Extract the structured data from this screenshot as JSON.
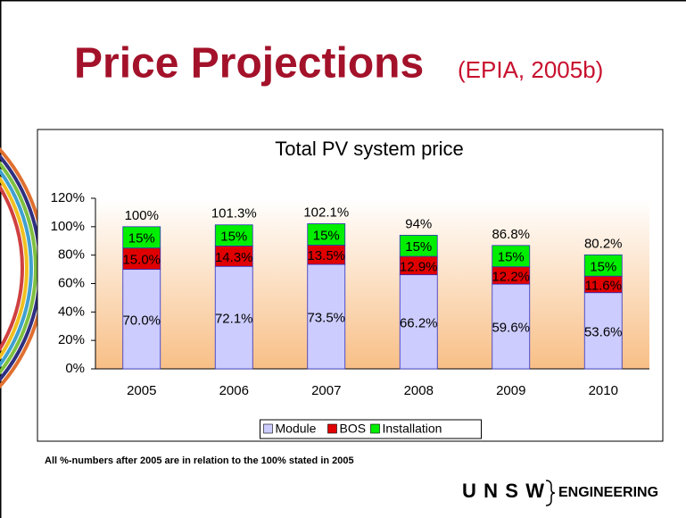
{
  "title": "Price Projections",
  "citation": "(EPIA, 2005b)",
  "chart_data": {
    "type": "stacked_bar",
    "title": "Total PV system price",
    "categories": [
      "2005",
      "2006",
      "2007",
      "2008",
      "2009",
      "2010"
    ],
    "series": [
      {
        "name": "Module",
        "color": "#ccccff",
        "values": [
          70.0,
          72.1,
          73.5,
          66.2,
          59.6,
          53.6
        ],
        "value_labels": [
          "70.0%",
          "72.1%",
          "73.5%",
          "66.2%",
          "59.6%",
          "53.6%"
        ]
      },
      {
        "name": "BOS",
        "color": "#e00000",
        "values": [
          15.0,
          14.3,
          13.5,
          12.9,
          12.2,
          11.6
        ],
        "value_labels": [
          "15.0%",
          "14.3%",
          "13.5%",
          "12.9%",
          "12.2%",
          "11.6%"
        ]
      },
      {
        "name": "Installation",
        "color": "#00ee00",
        "values": [
          15,
          14.9,
          15.1,
          14.9,
          15,
          15
        ],
        "value_labels": [
          "15%",
          "15%",
          "15%",
          "15%",
          "15%",
          "15%"
        ]
      }
    ],
    "totals": [
      100,
      101.3,
      102.1,
      94,
      86.8,
      80.2
    ],
    "total_labels": [
      "100%",
      "101.3%",
      "102.1%",
      "94%",
      "86.8%",
      "80.2%"
    ],
    "ylim": [
      0,
      120
    ],
    "yticks": [
      {
        "value": 0,
        "label": "0%"
      },
      {
        "value": 20,
        "label": "20%"
      },
      {
        "value": 40,
        "label": "40%"
      },
      {
        "value": 60,
        "label": "60%"
      },
      {
        "value": 80,
        "label": "80%"
      },
      {
        "value": 100,
        "label": "100%"
      },
      {
        "value": 120,
        "label": "120%"
      }
    ],
    "legend": "bottom"
  },
  "footnote": "All %-numbers after 2005 are in relation to the 100% stated in 2005",
  "logo": {
    "name": "UNSW",
    "unit": "ENGINEERING"
  }
}
